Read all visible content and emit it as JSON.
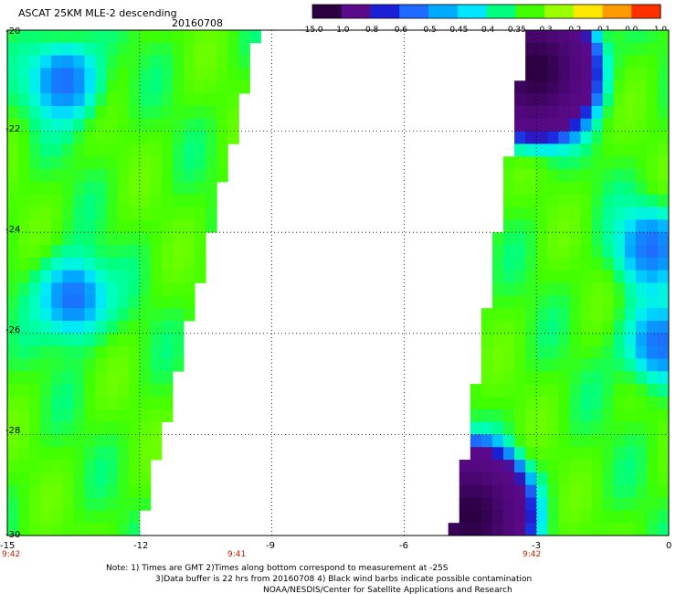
{
  "title": "ASCAT 25KM MLE-2 descending",
  "date": "20160708",
  "colorbar": {
    "labels": [
      "-15.0",
      "-1.0",
      "-0.8",
      "-0.6",
      "-0.5",
      "-0.45",
      "-0.4",
      "-0.35",
      "-0.3",
      "-0.2",
      "-0.1",
      "0.0",
      "1.0"
    ],
    "colors": [
      "#2a0040",
      "#5a0a8a",
      "#1a20d8",
      "#1e6cff",
      "#00aaff",
      "#00e6ff",
      "#00ff80",
      "#40ff00",
      "#9cff00",
      "#ffe800",
      "#ff9a00",
      "#ff3000"
    ]
  },
  "y_ticks": [
    "-20",
    "-22",
    "-24",
    "-26",
    "-28",
    "-30"
  ],
  "x_ticks": [
    "-15",
    "-12",
    "-9",
    "-6",
    "-3",
    "0"
  ],
  "times": [
    "9:42",
    "9:41",
    "9:42"
  ],
  "notes": [
    "Note: 1) Times are GMT 2)Times along bottom correspond to measurement at -25S",
    "3)Data buffer is 22 hrs from 20160708 4) Black wind barbs indicate possible contamination",
    "NOAA/NESDIS/Center for Satellite Applications and Research"
  ],
  "map": {
    "lon_range": [
      -15,
      0
    ],
    "lat_range": [
      -30,
      -20
    ],
    "grid": true,
    "left_swath_edge_lon_at_top": -9.3,
    "left_swath_edge_lon_at_bottom": -12.0,
    "right_swath_edge_lon_at_top": -3.2,
    "right_swath_edge_lon_at_bottom": -4.9,
    "dominant_value": -0.3,
    "features": [
      {
        "name": "low-1",
        "lon": -13.7,
        "lat": -21.0,
        "value": -0.6
      },
      {
        "name": "low-2",
        "lon": -13.5,
        "lat": -25.3,
        "value": -0.6
      },
      {
        "name": "low-3",
        "lon": -3.0,
        "lat": -20.8,
        "value": -15.0
      },
      {
        "name": "low-4",
        "lon": -4.5,
        "lat": -29.6,
        "value": -15.0
      },
      {
        "name": "low-5",
        "lon": -0.2,
        "lat": -26.2,
        "value": -0.6
      },
      {
        "name": "low-6",
        "lon": -0.4,
        "lat": -24.3,
        "value": -0.6
      }
    ]
  }
}
